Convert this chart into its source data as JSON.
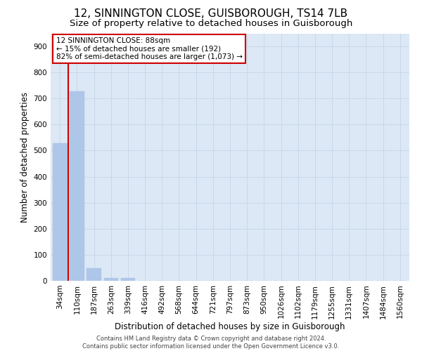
{
  "title": "12, SINNINGTON CLOSE, GUISBOROUGH, TS14 7LB",
  "subtitle": "Size of property relative to detached houses in Guisborough",
  "xlabel": "Distribution of detached houses by size in Guisborough",
  "ylabel": "Number of detached properties",
  "footnote": "Contains HM Land Registry data © Crown copyright and database right 2024.\nContains public sector information licensed under the Open Government Licence v3.0.",
  "bar_labels": [
    "34sqm",
    "110sqm",
    "187sqm",
    "263sqm",
    "339sqm",
    "416sqm",
    "492sqm",
    "568sqm",
    "644sqm",
    "721sqm",
    "797sqm",
    "873sqm",
    "950sqm",
    "1026sqm",
    "1102sqm",
    "1179sqm",
    "1255sqm",
    "1331sqm",
    "1407sqm",
    "1484sqm",
    "1560sqm"
  ],
  "bar_values": [
    527,
    727,
    48,
    12,
    10,
    0,
    0,
    0,
    0,
    0,
    0,
    0,
    0,
    0,
    0,
    0,
    0,
    0,
    0,
    0,
    0
  ],
  "bar_color": "#aec6e8",
  "vline_color": "#cc0000",
  "vline_x": 0.5,
  "annotation_line1": "12 SINNINGTON CLOSE: 88sqm",
  "annotation_line2": "← 15% of detached houses are smaller (192)",
  "annotation_line3": "82% of semi-detached houses are larger (1,073) →",
  "annotation_box_color": "#cc0000",
  "ylim": [
    0,
    950
  ],
  "yticks": [
    0,
    100,
    200,
    300,
    400,
    500,
    600,
    700,
    800,
    900
  ],
  "grid_color": "#c8d8e8",
  "bg_color": "#dce8f5",
  "title_fontsize": 11,
  "subtitle_fontsize": 9.5,
  "axis_label_fontsize": 8.5,
  "tick_fontsize": 7.5,
  "annotation_fontsize": 7.5,
  "footnote_fontsize": 6
}
